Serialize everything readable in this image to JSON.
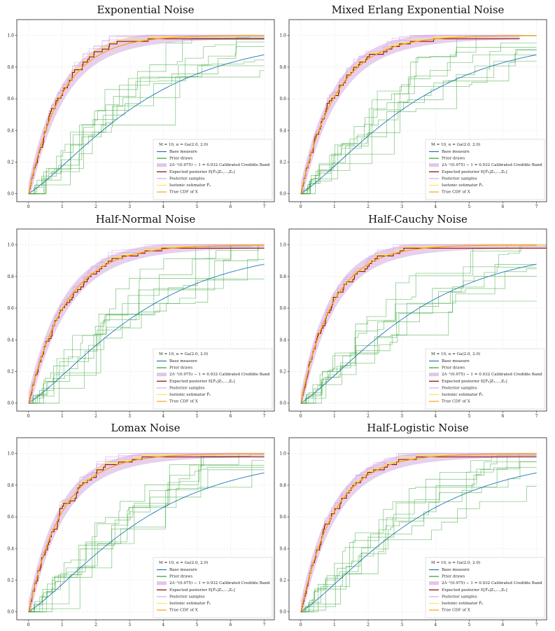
{
  "figure": {
    "legend": {
      "title": "M = 10, α = Ga(2.0, 2.0)",
      "entries": [
        {
          "key": "base",
          "label": "Base measure",
          "color": "#1f77b4"
        },
        {
          "key": "prior",
          "label": "Prior draws",
          "color": "#2ca02c"
        },
        {
          "key": "band",
          "label": "2Λ⁻¹(0.975) − 1 = 0.932 Calibrated Credible Band",
          "color": "#c896d8"
        },
        {
          "key": "post_mean",
          "label": "Expected posterior E[F̂₀|Z₁,...,Zₙ]",
          "color": "#8b0000"
        },
        {
          "key": "post_samples",
          "label": "Posterior samples",
          "color": "#d6a8e6"
        },
        {
          "key": "isotonic",
          "label": "Isotonic estimator F̂ₙ",
          "color": "#f5e84b"
        },
        {
          "key": "true_cdf",
          "label": "True CDF of X",
          "color": "#ff9f1c"
        }
      ]
    }
  },
  "chart_data": [
    {
      "type": "line",
      "title": "Exponential Noise",
      "xlim": [
        -0.35,
        7.3
      ],
      "ylim": [
        -0.05,
        1.1
      ],
      "xticks": [
        0,
        1,
        2,
        3,
        4,
        5,
        6,
        7
      ],
      "yticks": [
        0.0,
        0.2,
        0.4,
        0.6,
        0.8,
        1.0
      ],
      "true_cdf_rate": 1.0,
      "emp_end": 7.0,
      "seed": 11,
      "prior_ends": [
        0.78,
        0.97,
        0.86,
        0.72,
        0.93,
        0.8,
        0.84,
        0.9
      ],
      "series": [
        "Base measure",
        "Prior draws",
        "Posterior band",
        "Expected posterior",
        "Isotonic estimator",
        "True CDF"
      ]
    },
    {
      "type": "line",
      "title": "Mixed Erlang Exponential Noise",
      "xlim": [
        -0.35,
        7.3
      ],
      "ylim": [
        -0.05,
        1.1
      ],
      "xticks": [
        0,
        1,
        2,
        3,
        4,
        5,
        6,
        7
      ],
      "yticks": [
        0.0,
        0.2,
        0.4,
        0.6,
        0.8,
        1.0
      ],
      "true_cdf_rate": 0.95,
      "emp_end": 6.5,
      "seed": 23,
      "prior_ends": [
        0.74,
        0.97,
        0.86,
        0.96,
        0.93,
        0.8,
        0.9,
        0.82
      ],
      "series": [
        "Base measure",
        "Prior draws",
        "Posterior band",
        "Expected posterior",
        "Isotonic estimator",
        "True CDF"
      ]
    },
    {
      "type": "line",
      "title": "Half-Normal Noise",
      "xlim": [
        -0.35,
        7.3
      ],
      "ylim": [
        -0.05,
        1.1
      ],
      "xticks": [
        0,
        1,
        2,
        3,
        4,
        5,
        6,
        7
      ],
      "yticks": [
        0.0,
        0.2,
        0.4,
        0.6,
        0.8,
        1.0
      ],
      "true_cdf_rate": 0.9,
      "emp_end": 7.0,
      "seed": 37,
      "prior_ends": [
        0.7,
        0.98,
        0.86,
        0.84,
        0.93,
        0.78,
        0.97,
        0.88
      ],
      "series": [
        "Base measure",
        "Prior draws",
        "Posterior band",
        "Expected posterior",
        "Isotonic estimator",
        "True CDF"
      ]
    },
    {
      "type": "line",
      "title": "Half-Cauchy Noise",
      "xlim": [
        -0.35,
        7.3
      ],
      "ylim": [
        -0.05,
        1.1
      ],
      "xticks": [
        0,
        1,
        2,
        3,
        4,
        5,
        6,
        7
      ],
      "yticks": [
        0.0,
        0.2,
        0.4,
        0.6,
        0.8,
        1.0
      ],
      "true_cdf_rate": 1.05,
      "emp_end": 7.3,
      "seed": 53,
      "prior_ends": [
        0.69,
        0.96,
        0.76,
        0.74,
        0.92,
        0.7,
        0.88,
        0.78
      ],
      "series": [
        "Base measure",
        "Prior draws",
        "Posterior band",
        "Expected posterior",
        "Isotonic estimator",
        "True CDF"
      ]
    },
    {
      "type": "line",
      "title": "Lomax Noise",
      "xlim": [
        -0.35,
        7.3
      ],
      "ylim": [
        -0.05,
        1.1
      ],
      "xticks": [
        0,
        1,
        2,
        3,
        4,
        5,
        6,
        7
      ],
      "yticks": [
        0.0,
        0.2,
        0.4,
        0.6,
        0.8,
        1.0
      ],
      "true_cdf_rate": 1.0,
      "emp_end": 7.0,
      "seed": 71,
      "prior_ends": [
        0.79,
        0.96,
        0.88,
        0.9,
        0.93,
        0.82,
        0.86,
        0.94
      ],
      "series": [
        "Base measure",
        "Prior draws",
        "Posterior band",
        "Expected posterior",
        "Isotonic estimator",
        "True CDF"
      ]
    },
    {
      "type": "line",
      "title": "Half-Logistic Noise",
      "xlim": [
        -0.35,
        7.3
      ],
      "ylim": [
        -0.05,
        1.1
      ],
      "xticks": [
        0,
        1,
        2,
        3,
        4,
        5,
        6,
        7
      ],
      "yticks": [
        0.0,
        0.2,
        0.4,
        0.6,
        0.8,
        1.0
      ],
      "true_cdf_rate": 1.0,
      "emp_end": 7.0,
      "seed": 89,
      "prior_ends": [
        0.66,
        0.96,
        0.84,
        0.9,
        0.94,
        0.78,
        0.86,
        0.92
      ],
      "series": [
        "Base measure",
        "Prior draws",
        "Posterior band",
        "Expected posterior",
        "Isotonic estimator",
        "True CDF"
      ]
    }
  ]
}
